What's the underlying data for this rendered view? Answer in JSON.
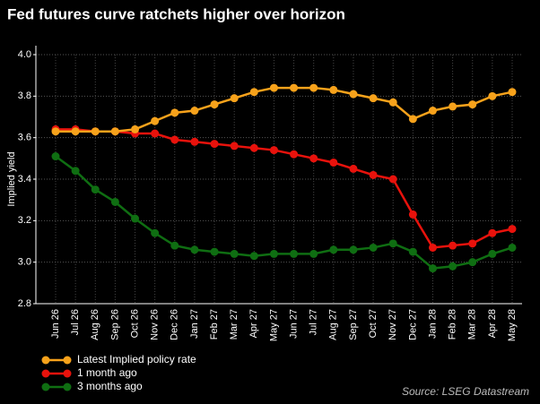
{
  "chart_data": {
    "type": "line",
    "title": "Fed futures curve ratchets higher over horizon",
    "y_label": "Implied yield",
    "source": "Source: LSEG Datastream",
    "categories": [
      "Jun 26",
      "Jul 26",
      "Aug 26",
      "Sep 26",
      "Oct 26",
      "Nov 26",
      "Dec 26",
      "Jan 27",
      "Feb 27",
      "Mar 27",
      "Apr 27",
      "May 27",
      "Jun 27",
      "Jul 27",
      "Aug 27",
      "Sep 27",
      "Oct 27",
      "Nov 27",
      "Dec 27",
      "Jan 28",
      "Feb 28",
      "Mar 28",
      "Apr 28",
      "May 28"
    ],
    "series": [
      {
        "name": "Latest Implied policy rate",
        "color": "#f7a21b",
        "values": [
          3.63,
          3.63,
          3.63,
          3.63,
          3.64,
          3.68,
          3.72,
          3.73,
          3.76,
          3.79,
          3.82,
          3.84,
          3.84,
          3.84,
          3.83,
          3.81,
          3.79,
          3.77,
          3.69,
          3.73,
          3.75,
          3.76,
          3.8,
          3.82
        ]
      },
      {
        "name": "1 month ago",
        "color": "#e8120c",
        "values": [
          3.64,
          3.64,
          3.63,
          3.63,
          3.62,
          3.62,
          3.59,
          3.58,
          3.57,
          3.56,
          3.55,
          3.54,
          3.52,
          3.5,
          3.48,
          3.45,
          3.42,
          3.4,
          3.23,
          3.07,
          3.08,
          3.09,
          3.14,
          3.16
        ]
      },
      {
        "name": "3 months ago",
        "color": "#0f6e12",
        "values": [
          3.51,
          3.44,
          3.35,
          3.29,
          3.21,
          3.14,
          3.08,
          3.06,
          3.05,
          3.04,
          3.03,
          3.04,
          3.04,
          3.04,
          3.06,
          3.06,
          3.07,
          3.09,
          3.05,
          2.97,
          2.98,
          3.0,
          3.04,
          3.07
        ]
      }
    ],
    "ylim": [
      2.8,
      4.0
    ],
    "yticks": [
      2.8,
      {
        "value": 3.0,
        "label": "3.0"
      },
      3.2,
      3.4,
      3.6,
      3.8,
      {
        "value": 4.0,
        "label": "4.0"
      }
    ],
    "grid": true
  }
}
